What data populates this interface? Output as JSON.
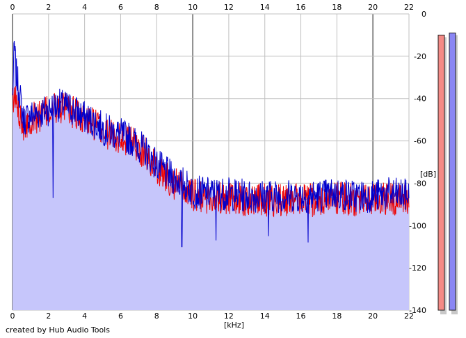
{
  "chart_data": {
    "type": "area",
    "title": "",
    "xlabel": "[kHz]",
    "ylabel": "[dB]",
    "xlim": [
      0,
      22
    ],
    "ylim": [
      -140,
      0
    ],
    "x_ticks": [
      0,
      2,
      4,
      6,
      8,
      10,
      12,
      14,
      16,
      18,
      20,
      22
    ],
    "y_ticks": [
      0,
      -20,
      -40,
      -60,
      -80,
      -100,
      -120,
      -140
    ],
    "x_tick_labels": [
      "0",
      "2",
      "4",
      "6",
      "8",
      "10",
      "12",
      "14",
      "16",
      "18",
      "20",
      "22"
    ],
    "y_tick_labels": [
      "0",
      "-20",
      "-40",
      "-60",
      "-80",
      "-100",
      "-120",
      "-140"
    ],
    "grid": true,
    "fill_color": "#c6c6fb",
    "series": [
      {
        "color": "#0000cc",
        "envelope": {
          "x": [
            0,
            0.1,
            0.2,
            0.4,
            0.6,
            1,
            1.5,
            2,
            2.5,
            3,
            3.5,
            4,
            4.5,
            5,
            5.5,
            6,
            6.5,
            7,
            7.5,
            8,
            8.5,
            9,
            9.5,
            10,
            11,
            12,
            13,
            14,
            15,
            16,
            17,
            18,
            19,
            20,
            21,
            22
          ],
          "y": [
            -40,
            -15,
            -28,
            -38,
            -50,
            -48,
            -47,
            -45,
            -43,
            -44,
            -46,
            -49,
            -51,
            -54,
            -56,
            -57,
            -59,
            -62,
            -66,
            -71,
            -75,
            -78,
            -80,
            -84,
            -85,
            -85,
            -86,
            -86,
            -86,
            -86,
            -86,
            -85,
            -86,
            -86,
            -85,
            -86
          ]
        },
        "dips": [
          [
            2.25,
            -87
          ],
          [
            9.4,
            -110
          ],
          [
            11.3,
            -107
          ],
          [
            14.2,
            -105
          ],
          [
            16.4,
            -108
          ]
        ]
      },
      {
        "color": "#ee0000",
        "envelope": {
          "x": [
            0,
            0.2,
            0.4,
            0.6,
            1,
            1.5,
            2,
            2.5,
            3,
            3.5,
            4,
            4.5,
            5,
            5.5,
            6,
            6.5,
            7,
            7.5,
            8,
            8.5,
            9,
            9.5,
            10,
            11,
            12,
            13,
            14,
            15,
            16,
            17,
            18,
            19,
            20,
            21,
            22
          ],
          "y": [
            -42,
            -40,
            -46,
            -52,
            -50,
            -48,
            -46,
            -44,
            -45,
            -47,
            -50,
            -52,
            -55,
            -57,
            -58,
            -60,
            -63,
            -67,
            -73,
            -77,
            -80,
            -83,
            -86,
            -87,
            -87,
            -88,
            -88,
            -88,
            -88,
            -88,
            -87,
            -88,
            -88,
            -87,
            -88
          ]
        }
      }
    ],
    "level_meters": [
      {
        "color": "#f48a86",
        "level_db": -10
      },
      {
        "color": "#8a86f4",
        "level_db": -9
      }
    ]
  },
  "credit": "created by Hub Audio Tools"
}
